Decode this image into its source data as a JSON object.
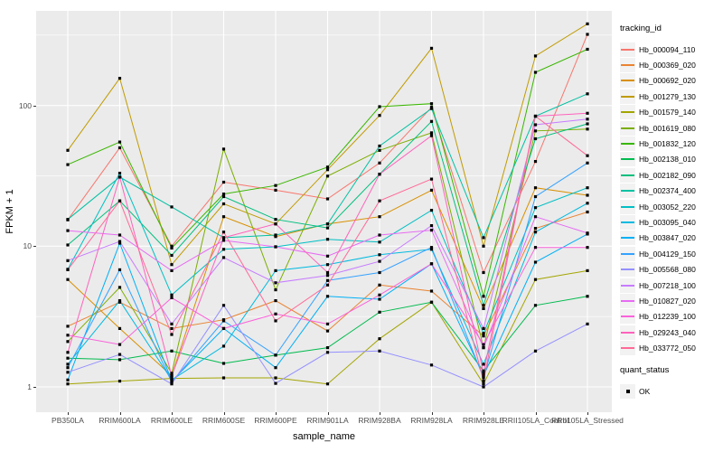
{
  "chart": {
    "y_axis_title": "FPKM + 1",
    "x_axis_title": "sample_name",
    "legend_tracking_title": "tracking_id",
    "legend_quant_title": "quant_status",
    "legend_quant_label": "OK"
  },
  "chart_data": {
    "type": "line",
    "title": "",
    "xlabel": "sample_name",
    "ylabel": "FPKM + 1",
    "y_scale": "log10",
    "ylim": [
      0.66,
      470
    ],
    "y_ticks": [
      1,
      10,
      100
    ],
    "y_minor_ticks": [
      3.162,
      31.62,
      316.2
    ],
    "grid": true,
    "legend_position": "right",
    "panel_bg": "#EBEBEB",
    "grid_color": "#FFFFFF",
    "axis_text_color": "#4D4D4D",
    "point": {
      "shape": "square",
      "color": "#000000",
      "size": 3.2
    },
    "categories": [
      "PB350LA",
      "RRIM600LA",
      "RRIM600LE",
      "RRIM600SE",
      "RRIM600PE",
      "RRIM901LA",
      "RRIM928BA",
      "RRIM928LA",
      "RRIM928LE",
      "RRII105LA_Control",
      "RRII105LA_Stressed"
    ],
    "quant_status_items": [
      {
        "label": "OK",
        "marker": "black-square"
      }
    ],
    "series": [
      {
        "name": "Hb_000094_110",
        "color": "#F8766D",
        "values": [
          15.4,
          50,
          10,
          28.5,
          25,
          21.7,
          39,
          97,
          6.5,
          40,
          320
        ]
      },
      {
        "name": "Hb_000369_020",
        "color": "#EA8331",
        "values": [
          2.7,
          4.0,
          2.6,
          3.0,
          4.1,
          2.5,
          5.3,
          4.8,
          2.3,
          13.4,
          17.5
        ]
      },
      {
        "name": "Hb_000692_020",
        "color": "#D89000",
        "values": [
          5.8,
          2.6,
          1.2,
          16.2,
          11.7,
          14.4,
          16.2,
          25,
          3.6,
          26,
          23
        ]
      },
      {
        "name": "Hb_001279_130",
        "color": "#C09B00",
        "values": [
          48,
          156,
          7.4,
          20,
          14.4,
          35,
          85,
          255,
          10,
          225,
          380
        ]
      },
      {
        "name": "Hb_001579_140",
        "color": "#A3A500",
        "values": [
          1.05,
          1.1,
          1.15,
          1.16,
          1.16,
          1.05,
          2.2,
          4.0,
          1.05,
          5.8,
          6.7
        ]
      },
      {
        "name": "Hb_001619_080",
        "color": "#7CAE00",
        "values": [
          2.1,
          5.1,
          1.25,
          49,
          4.9,
          31.5,
          48,
          64,
          1.9,
          66,
          68
        ]
      },
      {
        "name": "Hb_001832_120",
        "color": "#39B600",
        "values": [
          38,
          55,
          9.7,
          23.5,
          27,
          36.5,
          98,
          103,
          4.4,
          172,
          251
        ]
      },
      {
        "name": "Hb_002138_010",
        "color": "#00BB4E",
        "values": [
          1.6,
          1.56,
          1.8,
          1.47,
          1.68,
          1.9,
          3.4,
          4.0,
          1.3,
          3.8,
          4.4
        ]
      },
      {
        "name": "Hb_002182_090",
        "color": "#00BF7D",
        "values": [
          10.2,
          21,
          8.6,
          22.5,
          15.5,
          13.5,
          32.5,
          77,
          3.8,
          58,
          74
        ]
      },
      {
        "name": "Hb_002374_400",
        "color": "#00C1A3",
        "values": [
          15.5,
          31,
          19,
          11.5,
          12,
          14.4,
          51.5,
          95,
          11.5,
          84,
          121
        ]
      },
      {
        "name": "Hb_003052_220",
        "color": "#00BFC4",
        "values": [
          6.85,
          33,
          4.5,
          9.5,
          9.9,
          11.2,
          10.7,
          18,
          2.4,
          18.8,
          26
        ]
      },
      {
        "name": "Hb_003095_040",
        "color": "#00BAE0",
        "values": [
          1.45,
          4.1,
          1.12,
          1.95,
          6.7,
          7.4,
          8.7,
          9.5,
          1.45,
          12.6,
          20.2
        ]
      },
      {
        "name": "Hb_003847_020",
        "color": "#00B0F6",
        "values": [
          1.12,
          10.5,
          1.1,
          2.6,
          1.37,
          4.4,
          4.2,
          7.5,
          1.2,
          7.7,
          12.2
        ]
      },
      {
        "name": "Hb_004129_150",
        "color": "#35A2FF",
        "values": [
          1.37,
          6.8,
          1.08,
          2.95,
          1.68,
          5.7,
          6.5,
          9.8,
          1.16,
          22.5,
          39
        ]
      },
      {
        "name": "Hb_005568_080",
        "color": "#9590FF",
        "values": [
          1.27,
          1.7,
          1.05,
          3.8,
          1.06,
          1.76,
          1.8,
          1.43,
          1.0,
          1.8,
          2.8
        ]
      },
      {
        "name": "Hb_007218_100",
        "color": "#C77CFF",
        "values": [
          7.9,
          10.8,
          2.8,
          8.3,
          5.5,
          6.2,
          7.8,
          14,
          2.6,
          73,
          80
        ]
      },
      {
        "name": "Hb_010827_020",
        "color": "#E76BF3",
        "values": [
          12.9,
          12,
          6.7,
          11,
          9.9,
          8.5,
          12,
          13,
          1.9,
          16.2,
          12.4
        ]
      },
      {
        "name": "Hb_012239_100",
        "color": "#FA62DB",
        "values": [
          2.33,
          2.0,
          4.3,
          2.6,
          3.3,
          2.8,
          4.5,
          7.5,
          2.0,
          9.8,
          9.8
        ]
      },
      {
        "name": "Hb_029243_040",
        "color": "#FF62BC",
        "values": [
          1.76,
          31,
          1.2,
          11.5,
          14.4,
          6.5,
          32.5,
          61,
          1.25,
          84,
          88
        ]
      },
      {
        "name": "Hb_033772_050",
        "color": "#FF6A98",
        "values": [
          6.8,
          21,
          2.36,
          12.6,
          2.95,
          5.3,
          21,
          30,
          1.1,
          84,
          44
        ]
      }
    ]
  }
}
